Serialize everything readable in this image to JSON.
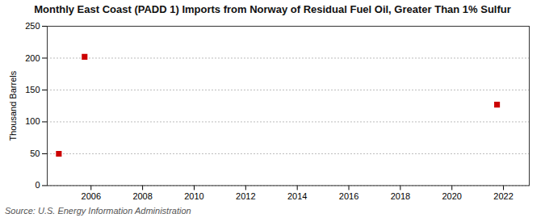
{
  "chart_data": {
    "type": "scatter",
    "title": "Monthly East Coast (PADD 1) Imports from Norway of Residual Fuel Oil, Greater Than 1% Sulfur",
    "ylabel": "Thousand Barrels",
    "annotation": "Source: U.S. Energy Information Administration",
    "x": [
      2004.75,
      2005.75,
      2021.75
    ],
    "values": [
      50,
      202,
      127
    ],
    "color": "#cc0000",
    "marker": "square",
    "xlim": [
      2004.3,
      2023.0
    ],
    "ylim": [
      0,
      250
    ],
    "xticks": [
      2006,
      2008,
      2010,
      2012,
      2014,
      2016,
      2018,
      2020,
      2022
    ],
    "yticks": [
      0,
      50,
      100,
      150,
      200,
      250
    ],
    "grid": true
  }
}
